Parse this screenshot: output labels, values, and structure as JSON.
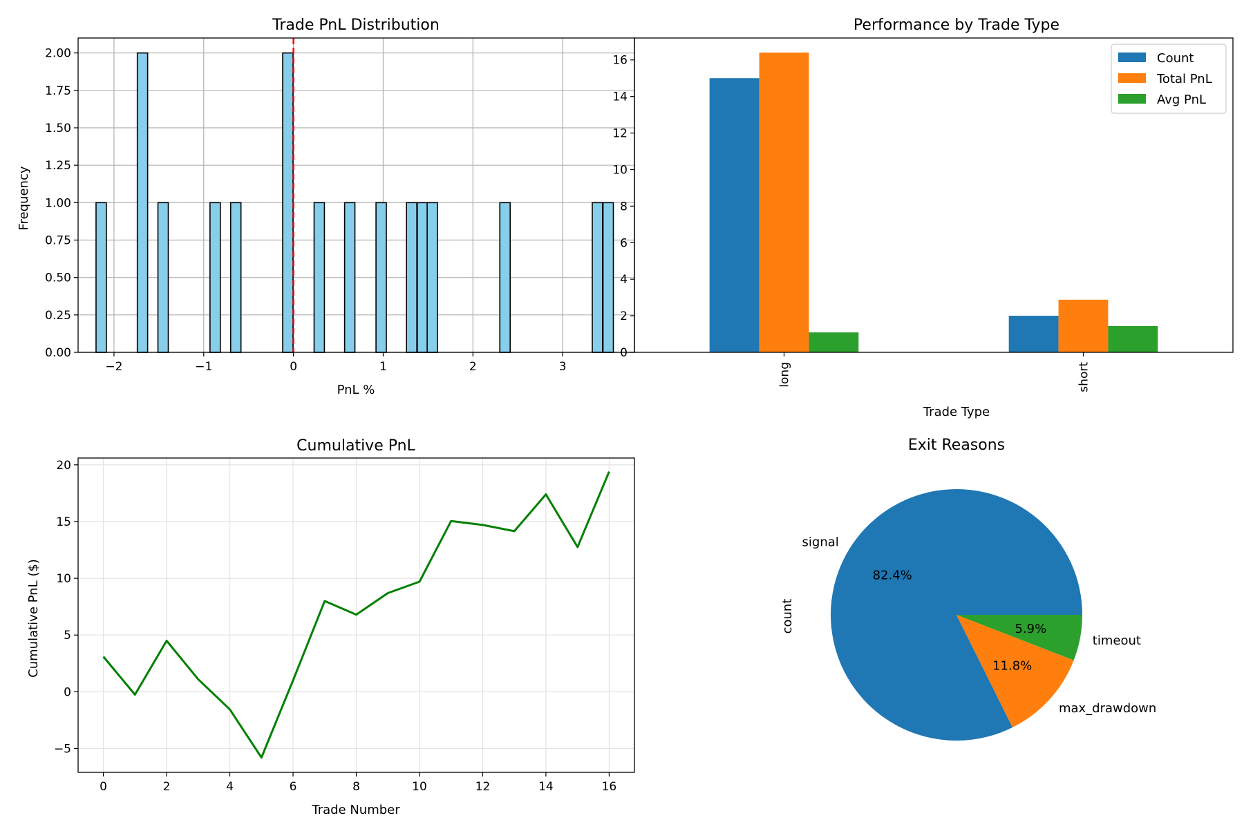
{
  "chart_data": [
    {
      "type": "bar",
      "subtype": "histogram",
      "title": "Trade PnL Distribution",
      "xlabel": "PnL %",
      "ylabel": "Frequency",
      "xlim": [
        -2.4,
        3.8
      ],
      "ylim": [
        0,
        2.1
      ],
      "xticks": [
        -2,
        -1,
        0,
        1,
        2,
        3
      ],
      "xtick_labels": [
        "−2",
        "−1",
        "0",
        "1",
        "2",
        "3"
      ],
      "yticks": [
        0,
        0.25,
        0.5,
        0.75,
        1.0,
        1.25,
        1.5,
        1.75,
        2.0
      ],
      "ytick_labels": [
        "0.00",
        "0.25",
        "0.50",
        "0.75",
        "1.00",
        "1.25",
        "1.50",
        "1.75",
        "2.00"
      ],
      "grid": true,
      "bin_width": 0.115,
      "bins": [
        {
          "x": -2.2,
          "count": 1
        },
        {
          "x": -1.74,
          "count": 2
        },
        {
          "x": -1.51,
          "count": 1
        },
        {
          "x": -0.93,
          "count": 1
        },
        {
          "x": -0.7,
          "count": 1
        },
        {
          "x": -0.12,
          "count": 2
        },
        {
          "x": 0.23,
          "count": 1
        },
        {
          "x": 0.57,
          "count": 1
        },
        {
          "x": 0.92,
          "count": 1
        },
        {
          "x": 1.26,
          "count": 1
        },
        {
          "x": 1.38,
          "count": 1
        },
        {
          "x": 1.49,
          "count": 1
        },
        {
          "x": 2.3,
          "count": 1
        },
        {
          "x": 3.33,
          "count": 1
        },
        {
          "x": 3.45,
          "count": 1
        }
      ],
      "bar_color": "#87ceeb",
      "reference_line": {
        "x": 0,
        "color": "#ff0000",
        "style": "dashed"
      }
    },
    {
      "type": "bar",
      "title": "Performance by Trade Type",
      "xlabel": "Trade Type",
      "ylabel": "",
      "categories": [
        "long",
        "short"
      ],
      "ylim": [
        0,
        17.2
      ],
      "yticks": [
        0,
        2,
        4,
        6,
        8,
        10,
        12,
        14,
        16
      ],
      "ytick_labels": [
        "0",
        "2",
        "4",
        "6",
        "8",
        "10",
        "12",
        "14",
        "16"
      ],
      "grid": false,
      "legend_placement": "top-right",
      "series": [
        {
          "name": "Count",
          "values": [
            15,
            2
          ],
          "color": "#1f77b4"
        },
        {
          "name": "Total PnL",
          "values": [
            16.4,
            2.88
          ],
          "color": "#ff7f0e"
        },
        {
          "name": "Avg PnL",
          "values": [
            1.09,
            1.44
          ],
          "color": "#2ca02c"
        }
      ]
    },
    {
      "type": "line",
      "title": "Cumulative PnL",
      "xlabel": "Trade Number",
      "ylabel": "Cumulative PnL ($)",
      "xlim": [
        -0.8,
        16.8
      ],
      "ylim": [
        -7.1,
        20.6
      ],
      "xticks": [
        0,
        2,
        4,
        6,
        8,
        10,
        12,
        14,
        16
      ],
      "xtick_labels": [
        "0",
        "2",
        "4",
        "6",
        "8",
        "10",
        "12",
        "14",
        "16"
      ],
      "yticks": [
        -5,
        0,
        5,
        10,
        15,
        20
      ],
      "ytick_labels": [
        "−5",
        "0",
        "5",
        "10",
        "15",
        "20"
      ],
      "grid": true,
      "series": [
        {
          "color": "#008000",
          "x": [
            0,
            1,
            2,
            3,
            4,
            5,
            6,
            7,
            8,
            9,
            10,
            11,
            12,
            13,
            14,
            15,
            16
          ],
          "values": [
            3.1,
            -0.25,
            4.5,
            1.1,
            -1.55,
            -5.8,
            1.0,
            8.0,
            6.8,
            8.7,
            9.7,
            15.05,
            14.7,
            14.15,
            17.4,
            12.75,
            19.4
          ]
        }
      ]
    },
    {
      "type": "pie",
      "title": "Exit Reasons",
      "ylabel": "count",
      "slices": [
        {
          "label": "signal",
          "value": 14,
          "pct_label": "82.4%",
          "color": "#1f77b4"
        },
        {
          "label": "max_drawdown",
          "value": 2,
          "pct_label": "11.8%",
          "color": "#ff7f0e"
        },
        {
          "label": "timeout",
          "value": 1,
          "pct_label": "5.9%",
          "color": "#2ca02c"
        }
      ]
    }
  ]
}
